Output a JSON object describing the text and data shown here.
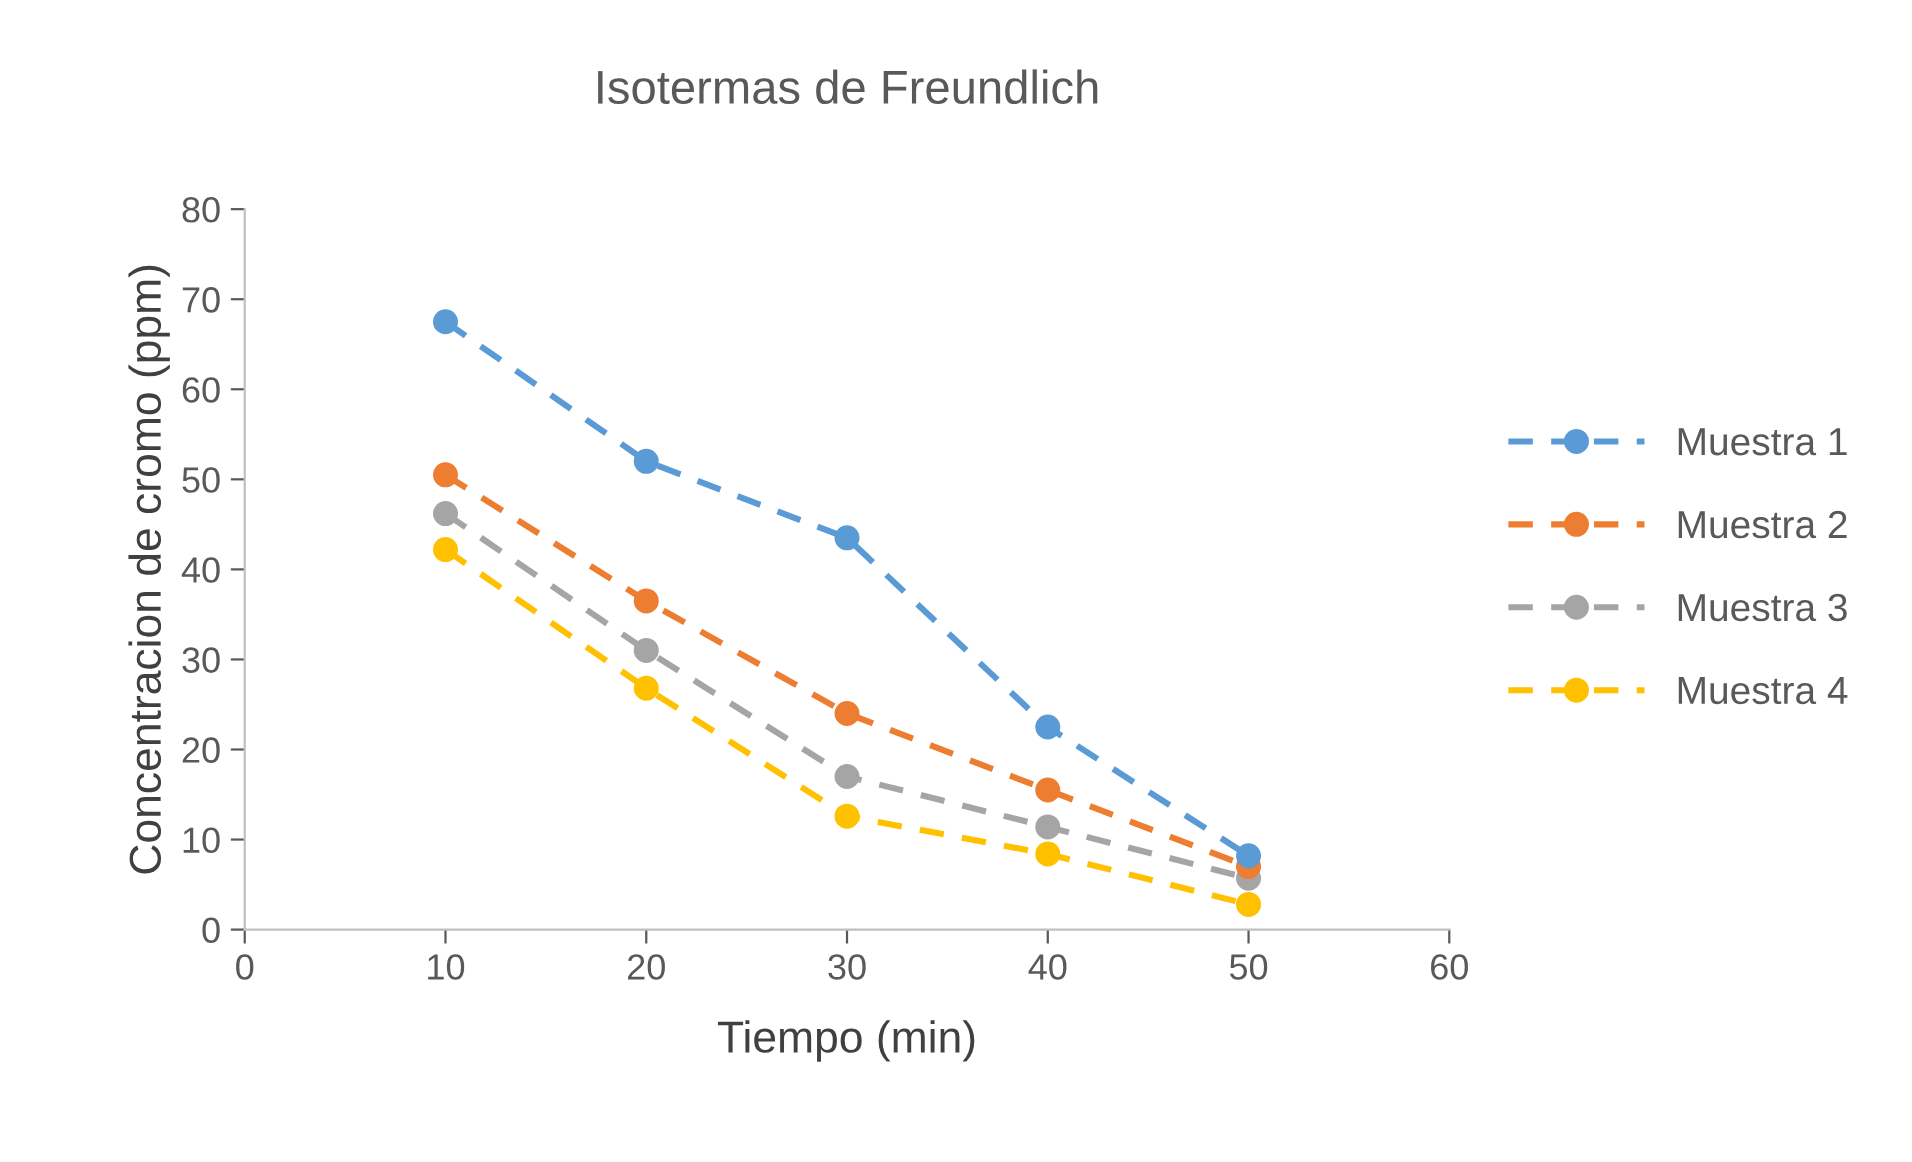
{
  "chart_data": {
    "type": "line",
    "title": "Isotermas de Freundlich",
    "xlabel": "Tiempo (min)",
    "ylabel": "Concentracion de cromo (ppm)",
    "x": [
      10,
      20,
      30,
      40,
      50
    ],
    "series": [
      {
        "name": "Muestra 1",
        "color": "#5b9bd5",
        "values": [
          67.5,
          52,
          43.5,
          22.5,
          8.2
        ]
      },
      {
        "name": "Muestra 2",
        "color": "#ed7d31",
        "values": [
          50.5,
          36.5,
          24,
          15.5,
          7
        ]
      },
      {
        "name": "Muestra 3",
        "color": "#a5a5a5",
        "values": [
          46.2,
          31,
          17,
          11.4,
          5.7
        ]
      },
      {
        "name": "Muestra 4",
        "color": "#ffc000",
        "values": [
          42.2,
          26.8,
          12.6,
          8.4,
          2.8
        ]
      }
    ],
    "xlim": [
      0,
      60
    ],
    "xticks": [
      0,
      10,
      20,
      30,
      40,
      50,
      60
    ],
    "ylim": [
      0,
      80
    ],
    "yticks": [
      0,
      10,
      20,
      30,
      40,
      50,
      60,
      70,
      80
    ],
    "grid": false,
    "legend": "right",
    "marker": "circle",
    "line_style": "dashed"
  }
}
